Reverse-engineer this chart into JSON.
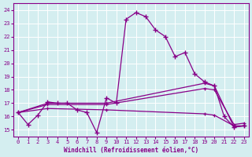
{
  "xlabel": "Windchill (Refroidissement éolien,°C)",
  "bg_color": "#d4eef0",
  "grid_color": "#ffffff",
  "line_color": "#880088",
  "xlim": [
    -0.5,
    23.5
  ],
  "ylim": [
    14.5,
    24.5
  ],
  "yticks": [
    15,
    16,
    17,
    18,
    19,
    20,
    21,
    22,
    23,
    24
  ],
  "xticks": [
    0,
    1,
    2,
    3,
    4,
    5,
    6,
    7,
    8,
    9,
    10,
    11,
    12,
    13,
    14,
    15,
    16,
    17,
    18,
    19,
    20,
    21,
    22,
    23
  ],
  "series": [
    {
      "x": [
        0,
        1,
        2,
        3,
        4,
        5,
        6,
        7,
        8,
        9,
        10,
        11,
        12,
        13,
        14,
        15,
        16,
        17,
        18,
        19,
        20,
        21,
        22,
        23
      ],
      "y": [
        16.3,
        15.4,
        16.1,
        17.1,
        17.0,
        17.0,
        16.5,
        16.3,
        14.8,
        17.4,
        17.0,
        23.3,
        23.8,
        23.5,
        22.5,
        22.0,
        20.5,
        20.8,
        19.2,
        18.6,
        18.3,
        16.0,
        15.2,
        15.3
      ]
    },
    {
      "x": [
        0,
        3,
        9,
        19,
        20,
        22,
        23
      ],
      "y": [
        16.3,
        17.0,
        17.0,
        18.5,
        18.3,
        15.2,
        15.3
      ]
    },
    {
      "x": [
        0,
        3,
        9,
        19,
        20,
        22,
        23
      ],
      "y": [
        16.3,
        16.9,
        16.9,
        18.1,
        18.0,
        15.4,
        15.5
      ]
    },
    {
      "x": [
        0,
        3,
        9,
        19,
        20,
        22,
        23
      ],
      "y": [
        16.3,
        16.6,
        16.5,
        16.2,
        16.1,
        15.3,
        15.3
      ]
    }
  ]
}
